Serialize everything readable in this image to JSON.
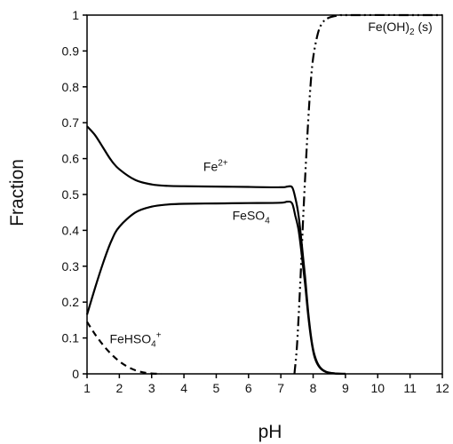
{
  "chart_data": {
    "type": "line",
    "xlabel": "pH",
    "ylabel": "Fraction",
    "xlim": [
      1,
      12
    ],
    "ylim": [
      0,
      1
    ],
    "x_ticks": [
      "1",
      "2",
      "3",
      "4",
      "5",
      "6",
      "7",
      "8",
      "9",
      "10",
      "11",
      "12"
    ],
    "y_ticks": [
      "0",
      "0.1",
      "0.2",
      "0.3",
      "0.4",
      "0.5",
      "0.6",
      "0.7",
      "0.8",
      "0.9",
      "1"
    ],
    "grid": false,
    "legend": "none (inline labels)",
    "series": [
      {
        "name": "Fe2+",
        "label_base": "Fe",
        "label_sup": "2+",
        "style": "solid",
        "label_at": [
          4.6,
          0.565
        ],
        "points": [
          [
            1,
            0.69
          ],
          [
            1.25,
            0.665
          ],
          [
            1.5,
            0.63
          ],
          [
            1.75,
            0.595
          ],
          [
            2,
            0.57
          ],
          [
            2.5,
            0.54
          ],
          [
            3,
            0.528
          ],
          [
            3.5,
            0.524
          ],
          [
            4,
            0.523
          ],
          [
            5,
            0.522
          ],
          [
            6,
            0.521
          ],
          [
            7,
            0.52
          ],
          [
            7.2,
            0.522
          ],
          [
            7.35,
            0.52
          ],
          [
            7.45,
            0.49
          ],
          [
            7.55,
            0.44
          ],
          [
            7.65,
            0.36
          ],
          [
            7.75,
            0.27
          ],
          [
            7.85,
            0.17
          ],
          [
            7.95,
            0.095
          ],
          [
            8.05,
            0.05
          ],
          [
            8.2,
            0.02
          ],
          [
            8.4,
            0.006
          ],
          [
            8.7,
            0.001
          ],
          [
            9,
            0
          ]
        ]
      },
      {
        "name": "FeSO4",
        "label_base": "FeSO",
        "label_sub": "4",
        "style": "solid",
        "label_at": [
          5.5,
          0.43
        ],
        "points": [
          [
            1,
            0.165
          ],
          [
            1.25,
            0.24
          ],
          [
            1.5,
            0.31
          ],
          [
            1.75,
            0.37
          ],
          [
            2,
            0.41
          ],
          [
            2.5,
            0.45
          ],
          [
            3,
            0.466
          ],
          [
            3.5,
            0.472
          ],
          [
            4,
            0.474
          ],
          [
            5,
            0.475
          ],
          [
            6,
            0.476
          ],
          [
            7,
            0.477
          ],
          [
            7.2,
            0.48
          ],
          [
            7.35,
            0.475
          ],
          [
            7.45,
            0.44
          ],
          [
            7.55,
            0.4
          ],
          [
            7.65,
            0.33
          ],
          [
            7.75,
            0.25
          ],
          [
            7.85,
            0.16
          ],
          [
            7.95,
            0.09
          ],
          [
            8.05,
            0.045
          ],
          [
            8.2,
            0.018
          ],
          [
            8.4,
            0.005
          ],
          [
            8.7,
            0.001
          ],
          [
            9,
            0
          ]
        ]
      },
      {
        "name": "FeHSO4+",
        "label_base": "FeHSO",
        "label_sub": "4",
        "label_sup": "+",
        "style": "dashed",
        "label_at": [
          1.7,
          0.085
        ],
        "points": [
          [
            1,
            0.145
          ],
          [
            1.25,
            0.11
          ],
          [
            1.5,
            0.08
          ],
          [
            1.75,
            0.055
          ],
          [
            2,
            0.035
          ],
          [
            2.25,
            0.02
          ],
          [
            2.5,
            0.01
          ],
          [
            2.75,
            0.004
          ],
          [
            3,
            0.001
          ],
          [
            3.3,
            0
          ]
        ]
      },
      {
        "name": "Fe(OH)2 (s)",
        "label_base": "Fe(OH)",
        "label_sub": "2",
        "label_after": " (s)",
        "style": "dash-dot-dot",
        "label_at": [
          9.7,
          0.955
        ],
        "points": [
          [
            7.42,
            0
          ],
          [
            7.5,
            0.08
          ],
          [
            7.6,
            0.25
          ],
          [
            7.7,
            0.45
          ],
          [
            7.8,
            0.63
          ],
          [
            7.9,
            0.78
          ],
          [
            8.0,
            0.88
          ],
          [
            8.15,
            0.95
          ],
          [
            8.3,
            0.98
          ],
          [
            8.5,
            0.993
          ],
          [
            8.8,
            0.999
          ],
          [
            9.2,
            1.0
          ],
          [
            12,
            1.0
          ]
        ]
      }
    ]
  }
}
